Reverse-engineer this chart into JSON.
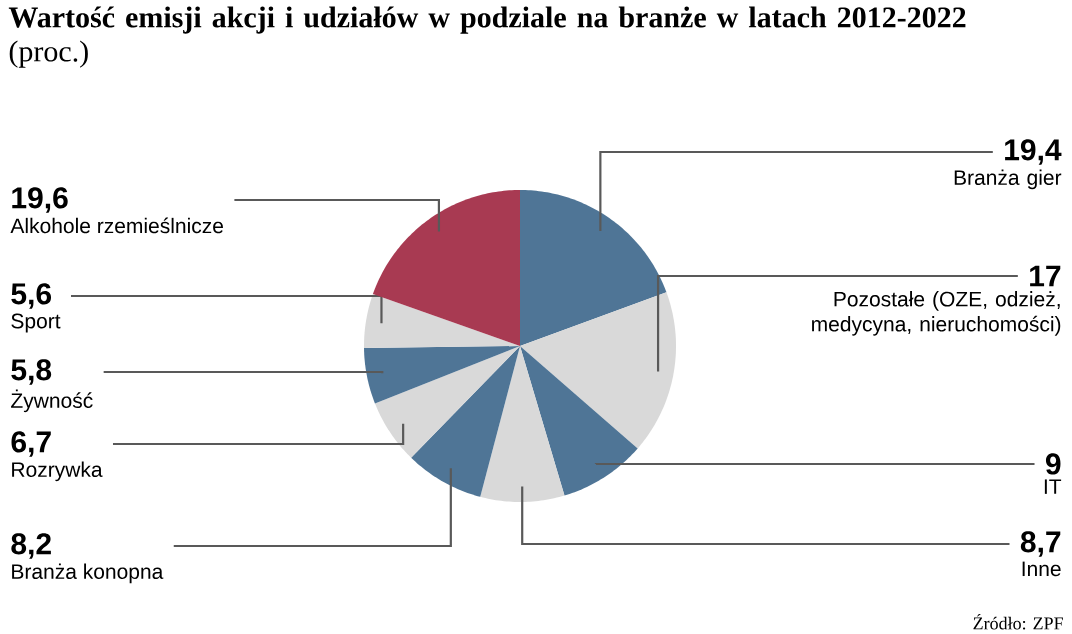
{
  "chart_data": {
    "type": "pie",
    "title": "**Wartość emisji akcji i udziałów w podziale na branże w latach 2012-2022** (proc.)",
    "categories": [
      "Branża gier",
      "Pozostałe (OZE, odzież, medycyna, nieruchomości)",
      "IT",
      "Inne",
      "Branża konopna",
      "Rozrywka",
      "Żywność",
      "Sport",
      "Alkohole rzemieślnicze"
    ],
    "values": [
      19.4,
      17,
      9,
      8.7,
      8.2,
      6.7,
      5.8,
      5.6,
      19.6
    ],
    "value_labels": [
      "19,4",
      "17",
      "9",
      "8,7",
      "8,2",
      "6,7",
      "5,8",
      "5,6",
      "19,6"
    ],
    "colors": [
      "#4f7596",
      "#d9d9d9",
      "#4f7596",
      "#d9d9d9",
      "#4f7596",
      "#d9d9d9",
      "#4f7596",
      "#d9d9d9",
      "#a83a52"
    ],
    "annotations": [
      "Źródło: ZPF"
    ]
  }
}
